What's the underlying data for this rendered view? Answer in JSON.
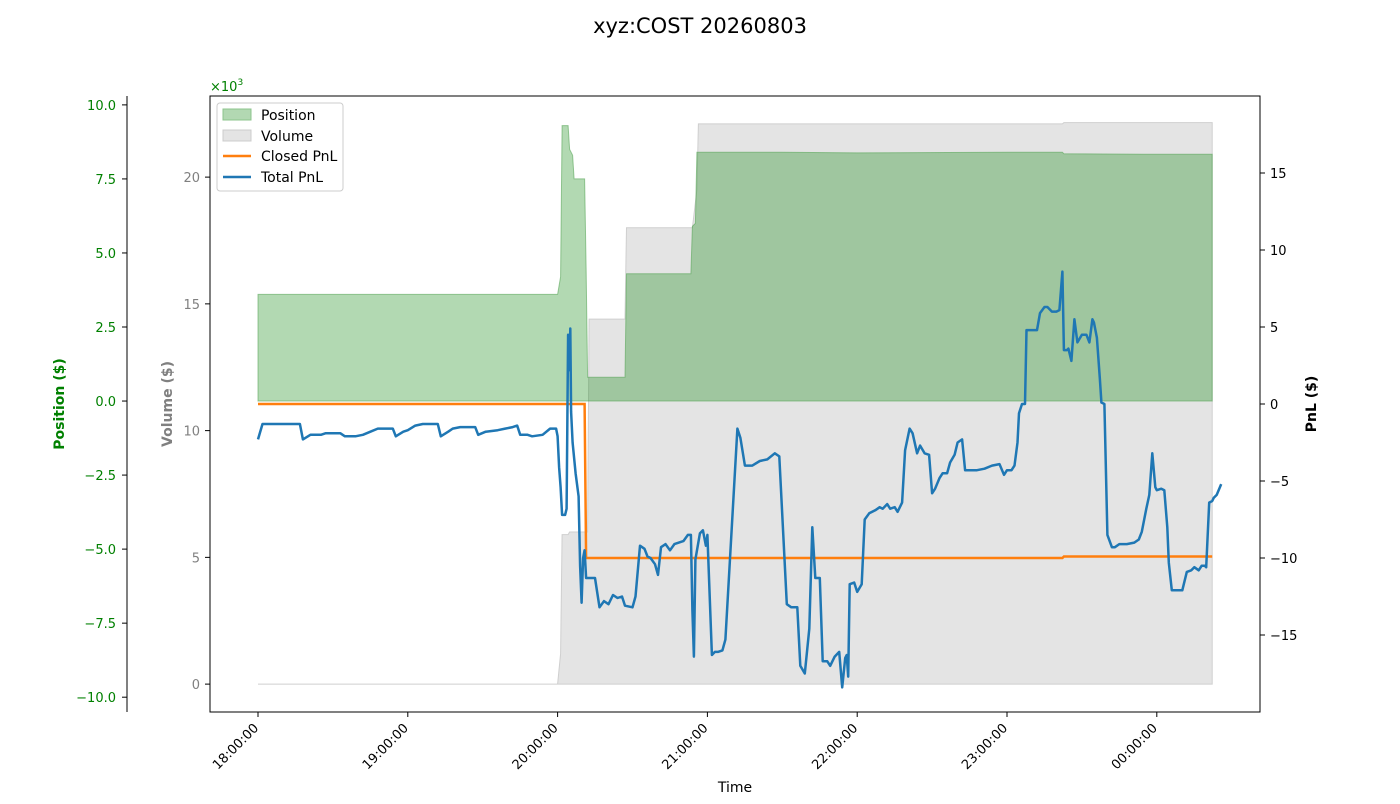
{
  "chart_data": {
    "type": "area",
    "title": "xyz:COST 20260803",
    "xlabel": "Time",
    "x_ticks": [
      "18:00:00",
      "19:00:00",
      "20:00:00",
      "21:00:00",
      "22:00:00",
      "23:00:00",
      "00:00:00"
    ],
    "position_axis": {
      "label": "Position ($)",
      "ylim": [
        -10.5,
        10.3
      ],
      "ticks": [
        -10.0,
        -7.5,
        -5.0,
        -2.5,
        0.0,
        2.5,
        5.0,
        7.5,
        10.0
      ],
      "tick_labels": [
        "−10.0",
        "−7.5",
        "−5.0",
        "−2.5",
        "0.0",
        "2.5",
        "5.0",
        "7.5",
        "10.0"
      ],
      "color": "#008000"
    },
    "volume_axis": {
      "label": "Volume ($)",
      "ylim": [
        -1.1,
        23.2
      ],
      "ticks": [
        0,
        5,
        10,
        15,
        20
      ],
      "tick_labels": [
        "0",
        "5",
        "10",
        "15",
        "20"
      ],
      "multiplier_label": "×10",
      "multiplier_exp": "3",
      "color": "#808080"
    },
    "pnl_axis": {
      "label": "PnL ($)",
      "ylim": [
        -20.0,
        20.0
      ],
      "ticks": [
        -15,
        -10,
        -5,
        0,
        5,
        10,
        15
      ],
      "tick_labels": [
        "−15",
        "−10",
        "−5",
        "0",
        "5",
        "10",
        "15"
      ],
      "color": "#000000"
    },
    "legend": {
      "placement": "top-left",
      "entries": [
        {
          "label": "Position",
          "kind": "fill",
          "color": "#b2d8b2",
          "edge": "#7fbf7f"
        },
        {
          "label": "Volume",
          "kind": "fill",
          "color": "#e4e4e4",
          "edge": "#cccccc"
        },
        {
          "label": "Closed PnL",
          "kind": "line",
          "color": "#ff7f0e"
        },
        {
          "label": "Total PnL",
          "kind": "line",
          "color": "#1f77b4"
        }
      ]
    },
    "x_range_hours": [
      18.0,
      24.37
    ],
    "series": [
      {
        "name": "Position",
        "axis": "position",
        "points": [
          [
            18.0,
            0.0
          ],
          [
            18.0,
            3.6
          ],
          [
            20.0,
            3.6
          ],
          [
            20.02,
            4.2
          ],
          [
            20.03,
            9.3
          ],
          [
            20.07,
            9.3
          ],
          [
            20.08,
            8.5
          ],
          [
            20.1,
            8.3
          ],
          [
            20.11,
            7.5
          ],
          [
            20.18,
            7.5
          ],
          [
            20.19,
            4.5
          ],
          [
            20.2,
            0.8
          ],
          [
            20.45,
            0.8
          ],
          [
            20.46,
            4.3
          ],
          [
            20.89,
            4.3
          ],
          [
            20.9,
            5.9
          ],
          [
            20.92,
            6.0
          ],
          [
            20.93,
            8.4
          ],
          [
            21.5,
            8.4
          ],
          [
            22.0,
            8.38
          ],
          [
            23.0,
            8.4
          ],
          [
            23.37,
            8.4
          ],
          [
            23.38,
            8.35
          ],
          [
            24.0,
            8.33
          ],
          [
            24.37,
            8.33
          ],
          [
            24.37,
            0.0
          ]
        ]
      },
      {
        "name": "Volume",
        "axis": "volume",
        "points": [
          [
            18.0,
            0.0
          ],
          [
            20.0,
            0.0
          ],
          [
            20.02,
            1.2
          ],
          [
            20.03,
            5.9
          ],
          [
            20.07,
            5.9
          ],
          [
            20.08,
            6.0
          ],
          [
            20.2,
            6.0
          ],
          [
            20.21,
            14.4
          ],
          [
            20.45,
            14.4
          ],
          [
            20.46,
            18.0
          ],
          [
            20.9,
            18.0
          ],
          [
            20.93,
            19.5
          ],
          [
            20.94,
            22.1
          ],
          [
            23.37,
            22.1
          ],
          [
            23.38,
            22.15
          ],
          [
            24.37,
            22.15
          ],
          [
            24.37,
            0.0
          ]
        ]
      },
      {
        "name": "Closed PnL",
        "axis": "pnl",
        "color": "#ff7f0e",
        "points": [
          [
            18.0,
            0.0
          ],
          [
            20.18,
            0.0
          ],
          [
            20.19,
            -10.0
          ],
          [
            23.37,
            -10.0
          ],
          [
            23.38,
            -9.9
          ],
          [
            24.37,
            -9.9
          ]
        ]
      },
      {
        "name": "Total PnL",
        "axis": "pnl",
        "color": "#1f77b4",
        "points": [
          [
            18.0,
            -2.3
          ],
          [
            18.03,
            -1.3
          ],
          [
            18.1,
            -1.3
          ],
          [
            18.2,
            -1.3
          ],
          [
            18.28,
            -1.3
          ],
          [
            18.3,
            -2.3
          ],
          [
            18.35,
            -2.0
          ],
          [
            18.42,
            -2.0
          ],
          [
            18.45,
            -1.9
          ],
          [
            18.5,
            -1.9
          ],
          [
            18.55,
            -1.9
          ],
          [
            18.58,
            -2.1
          ],
          [
            18.65,
            -2.1
          ],
          [
            18.7,
            -2.0
          ],
          [
            18.75,
            -1.8
          ],
          [
            18.8,
            -1.6
          ],
          [
            18.85,
            -1.6
          ],
          [
            18.9,
            -1.6
          ],
          [
            18.92,
            -2.1
          ],
          [
            18.97,
            -1.8
          ],
          [
            19.0,
            -1.7
          ],
          [
            19.05,
            -1.4
          ],
          [
            19.1,
            -1.3
          ],
          [
            19.15,
            -1.3
          ],
          [
            19.2,
            -1.3
          ],
          [
            19.22,
            -2.1
          ],
          [
            19.27,
            -1.8
          ],
          [
            19.3,
            -1.6
          ],
          [
            19.35,
            -1.5
          ],
          [
            19.4,
            -1.5
          ],
          [
            19.45,
            -1.5
          ],
          [
            19.47,
            -2.0
          ],
          [
            19.52,
            -1.8
          ],
          [
            19.6,
            -1.7
          ],
          [
            19.65,
            -1.6
          ],
          [
            19.7,
            -1.5
          ],
          [
            19.73,
            -1.4
          ],
          [
            19.75,
            -2.0
          ],
          [
            19.8,
            -2.0
          ],
          [
            19.83,
            -2.1
          ],
          [
            19.9,
            -2.0
          ],
          [
            19.95,
            -1.6
          ],
          [
            19.97,
            -1.6
          ],
          [
            19.99,
            -1.6
          ],
          [
            20.0,
            -2.1
          ],
          [
            20.01,
            -4.1
          ],
          [
            20.02,
            -5.4
          ],
          [
            20.03,
            -7.2
          ],
          [
            20.05,
            -7.2
          ],
          [
            20.06,
            -6.8
          ],
          [
            20.07,
            4.5
          ],
          [
            20.08,
            2.2
          ],
          [
            20.085,
            4.9
          ],
          [
            20.09,
            -0.5
          ],
          [
            20.1,
            -2.5
          ],
          [
            20.12,
            -4.5
          ],
          [
            20.14,
            -6.0
          ],
          [
            20.15,
            -10.5
          ],
          [
            20.16,
            -12.9
          ],
          [
            20.17,
            -10.0
          ],
          [
            20.18,
            -9.5
          ],
          [
            20.19,
            -11.3
          ],
          [
            20.2,
            -11.3
          ],
          [
            20.25,
            -11.3
          ],
          [
            20.28,
            -13.2
          ],
          [
            20.31,
            -12.8
          ],
          [
            20.34,
            -13.0
          ],
          [
            20.37,
            -12.4
          ],
          [
            20.4,
            -12.6
          ],
          [
            20.43,
            -12.5
          ],
          [
            20.45,
            -13.1
          ],
          [
            20.5,
            -13.2
          ],
          [
            20.52,
            -12.5
          ],
          [
            20.55,
            -9.2
          ],
          [
            20.58,
            -9.4
          ],
          [
            20.6,
            -9.9
          ],
          [
            20.62,
            -10.0
          ],
          [
            20.65,
            -10.4
          ],
          [
            20.67,
            -11.1
          ],
          [
            20.69,
            -9.3
          ],
          [
            20.72,
            -9.1
          ],
          [
            20.75,
            -9.5
          ],
          [
            20.78,
            -9.1
          ],
          [
            20.81,
            -9.0
          ],
          [
            20.84,
            -8.9
          ],
          [
            20.87,
            -8.5
          ],
          [
            20.89,
            -8.5
          ],
          [
            20.9,
            -13.4
          ],
          [
            20.91,
            -16.4
          ],
          [
            20.92,
            -10.1
          ],
          [
            20.95,
            -8.4
          ],
          [
            20.97,
            -8.2
          ],
          [
            20.99,
            -9.2
          ],
          [
            21.0,
            -8.5
          ],
          [
            21.03,
            -16.3
          ],
          [
            21.05,
            -16.1
          ],
          [
            21.07,
            -16.1
          ],
          [
            21.1,
            -16.0
          ],
          [
            21.12,
            -15.3
          ],
          [
            21.2,
            -1.6
          ],
          [
            21.22,
            -2.2
          ],
          [
            21.25,
            -4.0
          ],
          [
            21.3,
            -4.0
          ],
          [
            21.35,
            -3.7
          ],
          [
            21.4,
            -3.6
          ],
          [
            21.45,
            -3.2
          ],
          [
            21.48,
            -3.4
          ],
          [
            21.53,
            -13.0
          ],
          [
            21.56,
            -13.2
          ],
          [
            21.6,
            -13.2
          ],
          [
            21.62,
            -17.0
          ],
          [
            21.65,
            -17.5
          ],
          [
            21.68,
            -14.6
          ],
          [
            21.7,
            -8.0
          ],
          [
            21.72,
            -11.3
          ],
          [
            21.75,
            -11.3
          ],
          [
            21.77,
            -16.7
          ],
          [
            21.8,
            -16.7
          ],
          [
            21.82,
            -17.0
          ],
          [
            21.85,
            -16.4
          ],
          [
            21.88,
            -16.1
          ],
          [
            21.9,
            -18.4
          ],
          [
            21.92,
            -16.5
          ],
          [
            21.93,
            -16.3
          ],
          [
            21.94,
            -17.7
          ],
          [
            21.95,
            -11.7
          ],
          [
            21.98,
            -11.6
          ],
          [
            22.0,
            -12.2
          ],
          [
            22.03,
            -11.7
          ],
          [
            22.05,
            -7.5
          ],
          [
            22.08,
            -7.1
          ],
          [
            22.1,
            -7.0
          ],
          [
            22.12,
            -6.9
          ],
          [
            22.15,
            -6.7
          ],
          [
            22.17,
            -6.8
          ],
          [
            22.2,
            -6.5
          ],
          [
            22.22,
            -6.8
          ],
          [
            22.25,
            -6.7
          ],
          [
            22.27,
            -7.0
          ],
          [
            22.3,
            -6.4
          ],
          [
            22.32,
            -3.0
          ],
          [
            22.35,
            -1.6
          ],
          [
            22.37,
            -1.9
          ],
          [
            22.4,
            -3.2
          ],
          [
            22.42,
            -2.7
          ],
          [
            22.45,
            -3.2
          ],
          [
            22.48,
            -3.3
          ],
          [
            22.5,
            -5.8
          ],
          [
            22.52,
            -5.5
          ],
          [
            22.55,
            -4.8
          ],
          [
            22.57,
            -4.5
          ],
          [
            22.6,
            -4.5
          ],
          [
            22.62,
            -3.8
          ],
          [
            22.65,
            -3.3
          ],
          [
            22.67,
            -2.5
          ],
          [
            22.7,
            -2.3
          ],
          [
            22.72,
            -4.3
          ],
          [
            22.75,
            -4.3
          ],
          [
            22.8,
            -4.3
          ],
          [
            22.85,
            -4.2
          ],
          [
            22.9,
            -4.0
          ],
          [
            22.95,
            -3.9
          ],
          [
            22.98,
            -4.6
          ],
          [
            23.0,
            -4.3
          ],
          [
            23.03,
            -4.3
          ],
          [
            23.05,
            -4.0
          ],
          [
            23.07,
            -2.5
          ],
          [
            23.08,
            -0.6
          ],
          [
            23.1,
            0.0
          ],
          [
            23.12,
            0.0
          ],
          [
            23.13,
            4.8
          ],
          [
            23.15,
            4.8
          ],
          [
            23.18,
            4.8
          ],
          [
            23.2,
            4.8
          ],
          [
            23.22,
            5.9
          ],
          [
            23.25,
            6.3
          ],
          [
            23.27,
            6.3
          ],
          [
            23.3,
            6.0
          ],
          [
            23.33,
            6.0
          ],
          [
            23.35,
            6.1
          ],
          [
            23.37,
            8.6
          ],
          [
            23.38,
            3.5
          ],
          [
            23.4,
            3.5
          ],
          [
            23.41,
            3.6
          ],
          [
            23.43,
            2.8
          ],
          [
            23.45,
            5.5
          ],
          [
            23.47,
            4.0
          ],
          [
            23.5,
            4.5
          ],
          [
            23.52,
            4.5
          ],
          [
            23.53,
            4.5
          ],
          [
            23.55,
            4.0
          ],
          [
            23.57,
            5.5
          ],
          [
            23.58,
            5.3
          ],
          [
            23.6,
            4.3
          ],
          [
            23.62,
            1.6
          ],
          [
            23.63,
            0.1
          ],
          [
            23.65,
            0.0
          ],
          [
            23.67,
            -8.5
          ],
          [
            23.7,
            -9.3
          ],
          [
            23.72,
            -9.3
          ],
          [
            23.75,
            -9.1
          ],
          [
            23.8,
            -9.1
          ],
          [
            23.85,
            -9.0
          ],
          [
            23.88,
            -8.8
          ],
          [
            23.9,
            -8.3
          ],
          [
            23.93,
            -6.8
          ],
          [
            23.95,
            -5.9
          ],
          [
            23.97,
            -3.2
          ],
          [
            23.99,
            -5.4
          ],
          [
            24.0,
            -5.6
          ],
          [
            24.03,
            -5.5
          ],
          [
            24.05,
            -5.6
          ],
          [
            24.07,
            -8.0
          ],
          [
            24.08,
            -10.3
          ],
          [
            24.1,
            -12.1
          ],
          [
            24.15,
            -12.1
          ],
          [
            24.17,
            -12.1
          ],
          [
            24.2,
            -10.9
          ],
          [
            24.23,
            -10.8
          ],
          [
            24.25,
            -10.6
          ],
          [
            24.28,
            -10.8
          ],
          [
            24.3,
            -10.5
          ],
          [
            24.32,
            -10.5
          ],
          [
            24.33,
            -10.6
          ],
          [
            24.35,
            -6.4
          ],
          [
            24.37,
            -6.3
          ],
          [
            24.38,
            -6.1
          ],
          [
            24.4,
            -5.9
          ],
          [
            24.43,
            -5.2
          ]
        ]
      }
    ]
  }
}
